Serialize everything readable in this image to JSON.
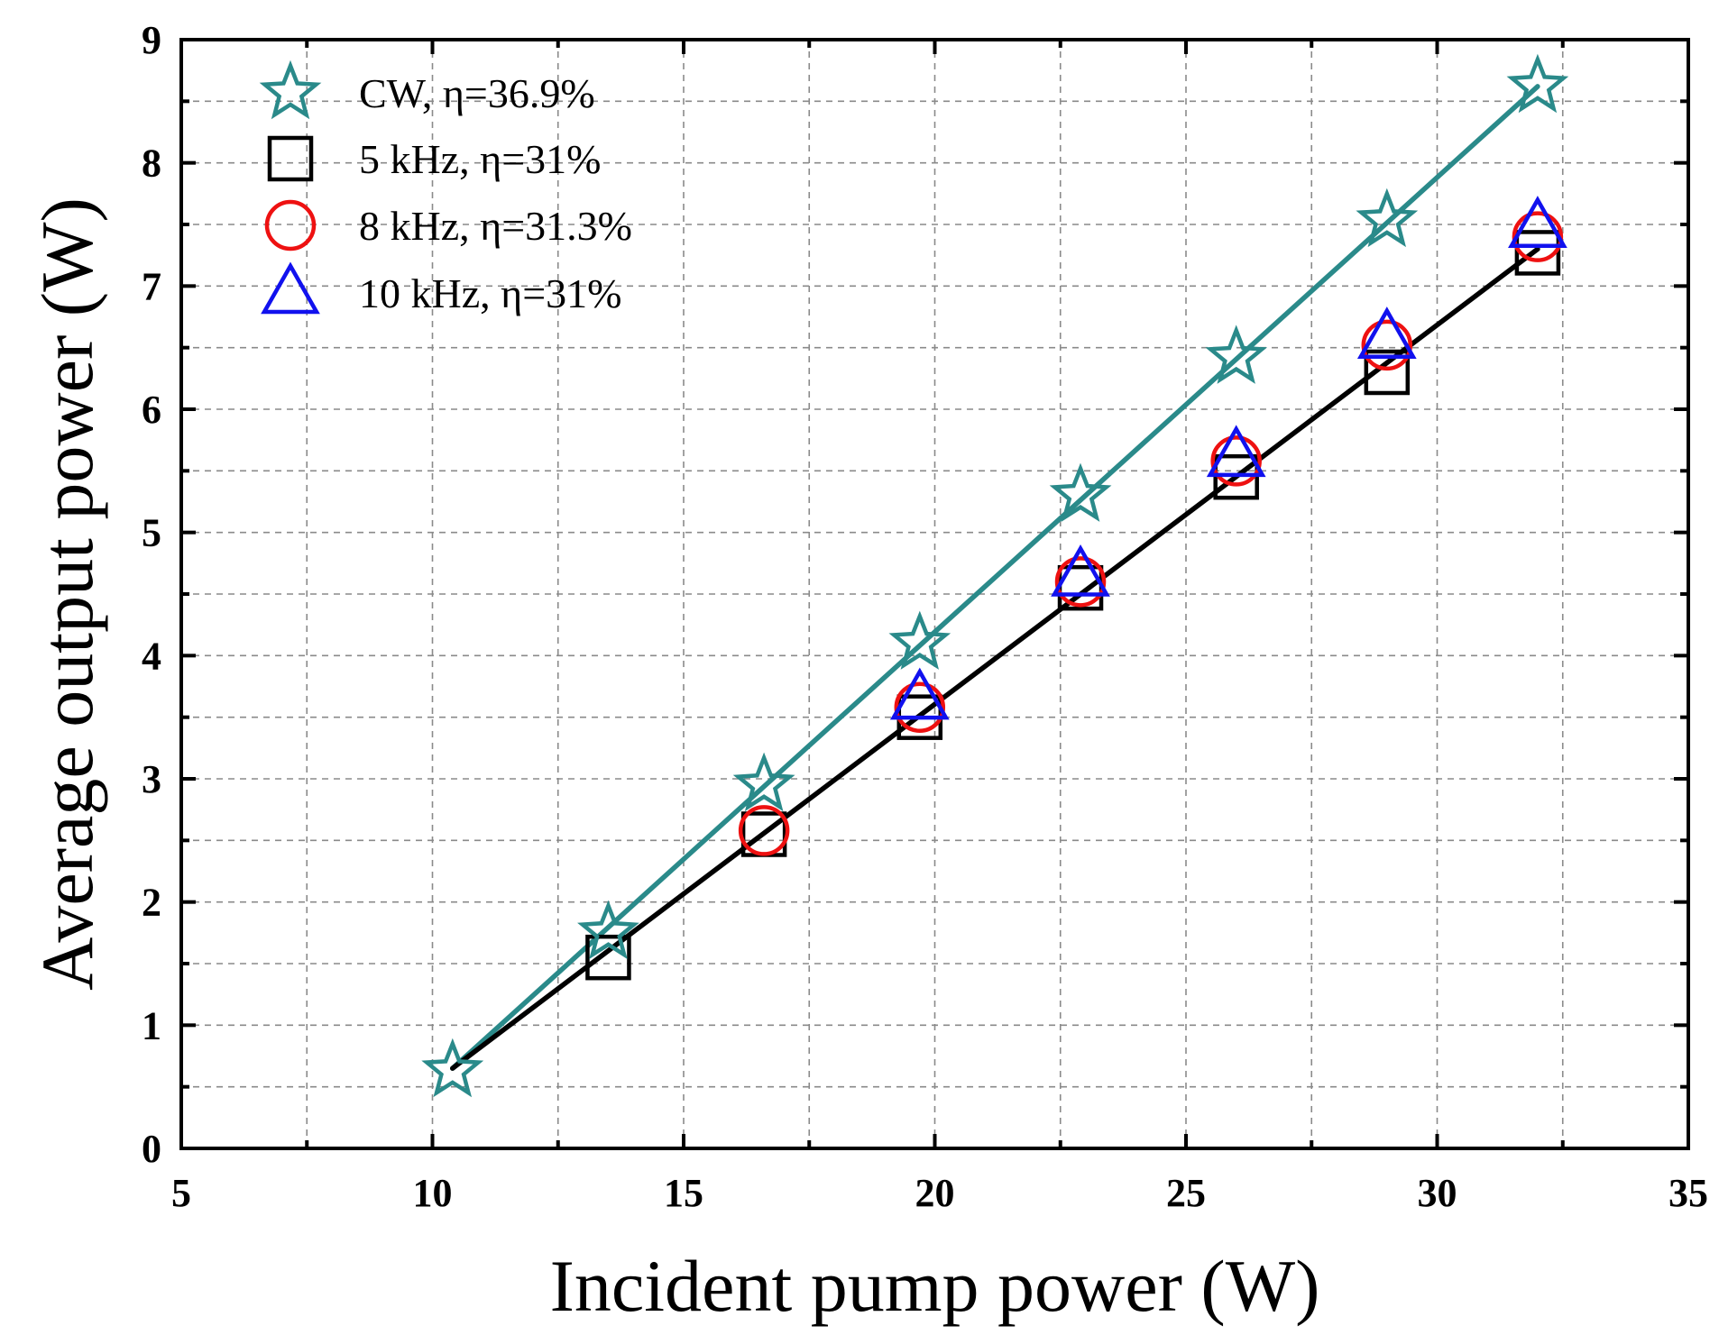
{
  "chart_data": {
    "type": "scatter",
    "xlabel": "Incident pump power (W)",
    "ylabel": "Average output power (W)",
    "xlim": [
      5,
      35
    ],
    "ylim": [
      0,
      9
    ],
    "xticks": [
      "5",
      "10",
      "15",
      "20",
      "25",
      "30",
      "35"
    ],
    "yticks": [
      "0",
      "1",
      "2",
      "3",
      "4",
      "5",
      "6",
      "7",
      "8",
      "9"
    ],
    "grid": true,
    "legend_position": "top-left",
    "series": [
      {
        "name": "CW, η=36.9%",
        "marker": "star",
        "color": "#2a8a8a",
        "x": [
          10.4,
          13.5,
          16.6,
          19.7,
          22.9,
          26.0,
          29.0,
          32.0
        ],
        "y": [
          0.63,
          1.75,
          2.95,
          4.1,
          5.3,
          6.42,
          7.53,
          8.62
        ],
        "fit": {
          "x": [
            10.4,
            32.0
          ],
          "y": [
            0.65,
            8.62
          ],
          "color": "#2a8a8a"
        }
      },
      {
        "name": "5 kHz, η=31%",
        "marker": "square",
        "color": "#000000",
        "x": [
          13.5,
          16.6,
          19.7,
          22.9,
          26.0,
          29.0,
          32.0
        ],
        "y": [
          1.55,
          2.55,
          3.5,
          4.55,
          5.45,
          6.3,
          7.27
        ],
        "fit": {
          "x": [
            10.4,
            32.0
          ],
          "y": [
            0.65,
            7.3
          ],
          "color": "#000000"
        }
      },
      {
        "name": "8 kHz, η=31.3%",
        "marker": "circle",
        "color": "#ee1111",
        "x": [
          16.6,
          19.7,
          22.9,
          26.0,
          29.0,
          32.0
        ],
        "y": [
          2.58,
          3.58,
          4.6,
          5.58,
          6.52,
          7.4
        ]
      },
      {
        "name": "10 kHz, η=31%",
        "marker": "triangle",
        "color": "#1111ee",
        "x": [
          19.7,
          22.9,
          26.0,
          29.0,
          32.0
        ],
        "y": [
          3.65,
          4.65,
          5.62,
          6.58,
          7.48
        ]
      }
    ]
  }
}
